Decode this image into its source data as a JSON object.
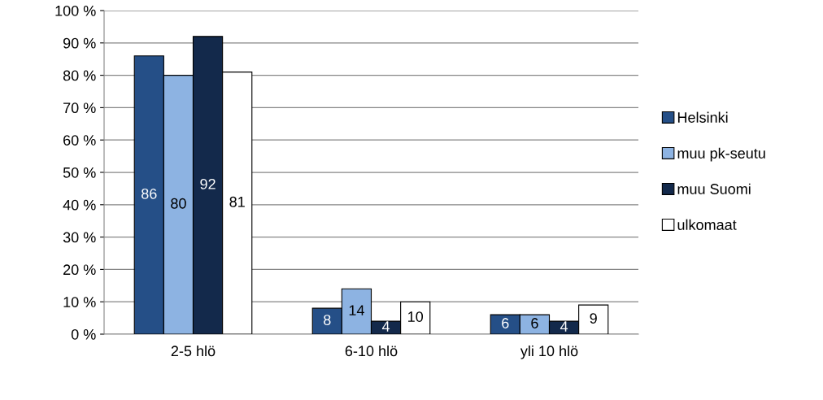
{
  "chart_data": {
    "type": "bar",
    "categories": [
      "2-5 hlö",
      "6-10 hlö",
      "yli 10 hlö"
    ],
    "series": [
      {
        "name": "Helsinki",
        "color": "#254f87",
        "values": [
          86,
          8,
          6
        ]
      },
      {
        "name": "muu pk-seutu",
        "color": "#8db3e2",
        "values": [
          80,
          14,
          6
        ]
      },
      {
        "name": "muu Suomi",
        "color": "#13294b",
        "values": [
          92,
          4,
          4
        ]
      },
      {
        "name": "ulkomaat",
        "color": "#ffffff",
        "values": [
          81,
          10,
          9
        ]
      }
    ],
    "ylim": [
      0,
      100
    ],
    "yticks": [
      {
        "value": 0,
        "label": "0 %"
      },
      {
        "value": 10,
        "label": "10 %"
      },
      {
        "value": 20,
        "label": "20 %"
      },
      {
        "value": 30,
        "label": "30 %"
      },
      {
        "value": 40,
        "label": "40 %"
      },
      {
        "value": 50,
        "label": "50 %"
      },
      {
        "value": 60,
        "label": "60 %"
      },
      {
        "value": 70,
        "label": "70 %"
      },
      {
        "value": 80,
        "label": "80 %"
      },
      {
        "value": 90,
        "label": "90 %"
      },
      {
        "value": 100,
        "label": "100 %"
      }
    ],
    "grid": "y",
    "legend": "right",
    "data_labels": true
  }
}
